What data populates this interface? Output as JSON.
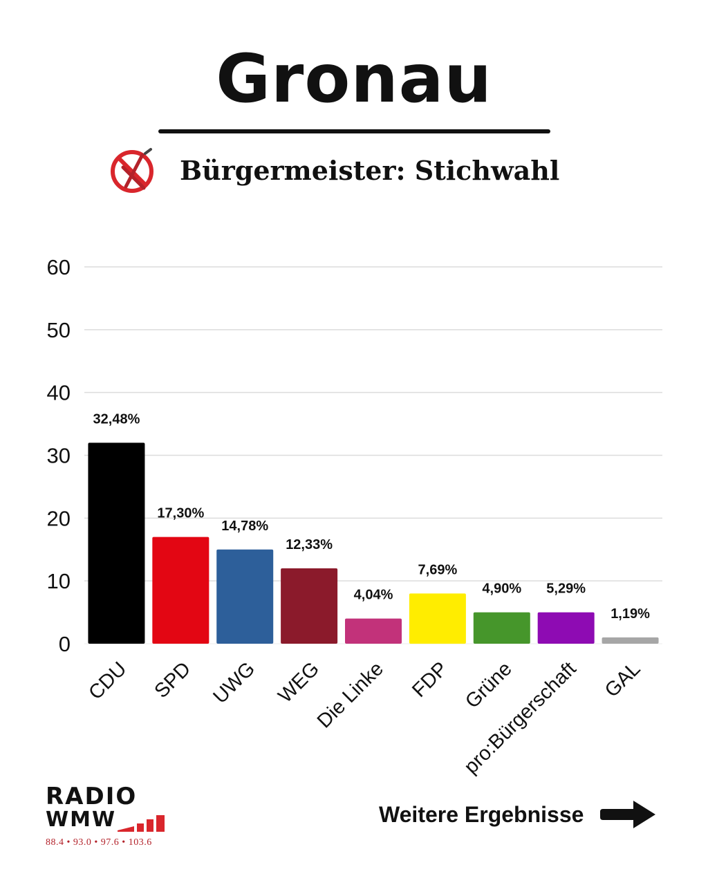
{
  "header": {
    "title": "Gronau",
    "subtitle": "Bürgermeister: Stichwahl",
    "ballot_icon": "crossed-ballot-circle-icon"
  },
  "colors": {
    "accent_red": "#d9262c",
    "text": "#111111",
    "gridline": "#dcdcdc"
  },
  "chart_data": {
    "type": "bar",
    "categories": [
      "CDU",
      "SPD",
      "UWG",
      "WEG",
      "Die Linke",
      "FDP",
      "Grüne",
      "pro:Bürgerschaft",
      "GAL"
    ],
    "values": [
      32.48,
      17.3,
      14.78,
      12.33,
      4.04,
      7.69,
      4.9,
      5.29,
      1.19
    ],
    "bar_heights": [
      32,
      17,
      15,
      12,
      4,
      8,
      5,
      5,
      1
    ],
    "data_labels": [
      "32,48%",
      "17,30%",
      "14,78%",
      "12,33%",
      "4,04%",
      "7,69%",
      "4,90%",
      "5,29%",
      "1,19%"
    ],
    "colors": [
      "#000000",
      "#e30613",
      "#2d5f9a",
      "#8b1a2b",
      "#c2327a",
      "#ffed00",
      "#46962b",
      "#8e0bb3",
      "#a6a6a6"
    ],
    "yticks": [
      0,
      10,
      20,
      30,
      40,
      50,
      60
    ],
    "ylim": [
      0,
      60
    ],
    "xlabel": "",
    "ylabel": "",
    "grid": true,
    "legend": "none"
  },
  "footer": {
    "logo_line1": "RADIO",
    "logo_line2": "WMW",
    "logo_frequencies": "88.4 • 93.0 • 97.6 • 103.6",
    "more_results": "Weitere Ergebnisse",
    "arrow_icon": "arrow-right-icon"
  }
}
